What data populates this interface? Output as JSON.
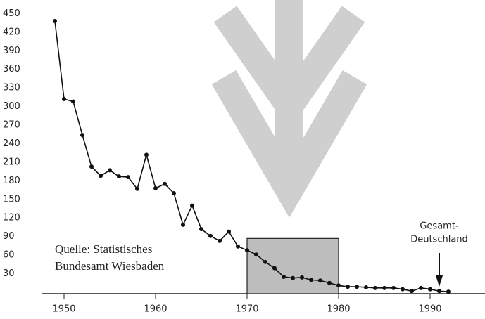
{
  "chart_data": {
    "type": "line",
    "x": [
      1949,
      1950,
      1951,
      1952,
      1953,
      1954,
      1955,
      1956,
      1957,
      1958,
      1959,
      1960,
      1961,
      1962,
      1963,
      1964,
      1965,
      1966,
      1967,
      1968,
      1969,
      1970,
      1971,
      1972,
      1973,
      1974,
      1975,
      1976,
      1977,
      1978,
      1979,
      1980,
      1981,
      1982,
      1983,
      1984,
      1985,
      1986,
      1987,
      1988,
      1989,
      1990,
      1991,
      1992
    ],
    "series": [
      {
        "color": "#111111",
        "values": [
          438,
          312,
          308,
          254,
          203,
          188,
          197,
          187,
          186,
          167,
          222,
          168,
          175,
          160,
          109,
          140,
          102,
          91,
          83,
          98,
          74,
          68,
          61,
          49,
          39,
          25,
          23,
          24,
          20,
          19,
          15,
          11,
          9,
          9,
          8,
          7,
          7,
          7,
          5,
          2,
          7,
          5,
          2,
          1
        ]
      }
    ],
    "xlim": [
      1948,
      1996
    ],
    "xticks": [
      1950,
      1960,
      1970,
      1980,
      1990
    ],
    "ylim": [
      0,
      472
    ],
    "yticks": [
      30,
      60,
      90,
      120,
      150,
      180,
      210,
      240,
      270,
      300,
      330,
      360,
      390,
      420,
      450
    ],
    "highlight": {
      "x": [
        1970,
        1980
      ],
      "y": [
        0,
        87
      ],
      "color": "#bdbdbd"
    },
    "source_note": [
      "Quelle: Statistisches",
      "Bundesamt Wiesbaden"
    ],
    "annotation": {
      "text": [
        "Gesamt-",
        "Deutschland"
      ],
      "x": 1991
    }
  }
}
